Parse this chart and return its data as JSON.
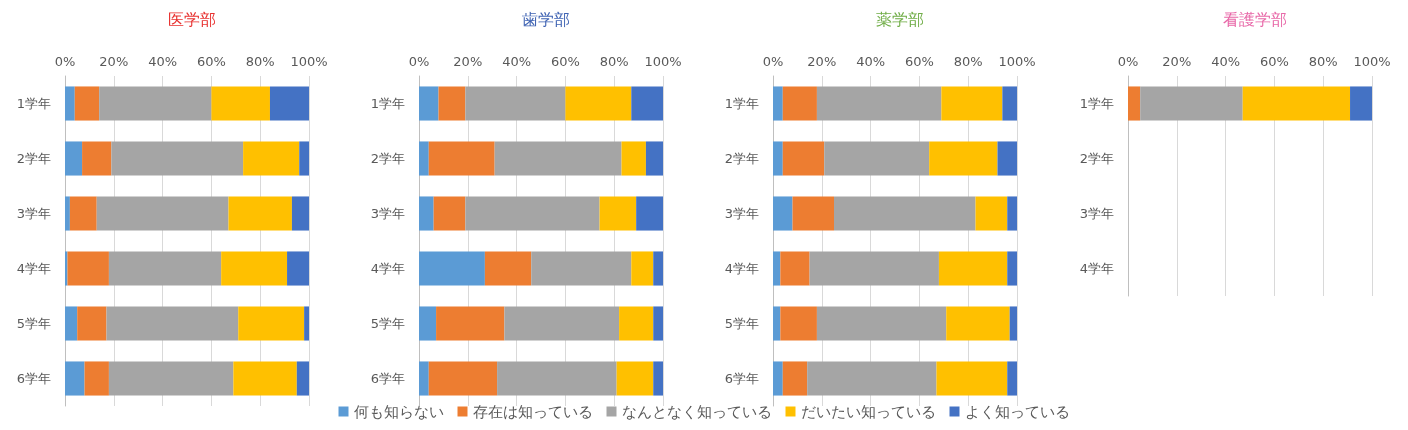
{
  "chart_data": [
    {
      "type": "bar",
      "orientation": "horizontal",
      "stacked": true,
      "title": "医学部",
      "categories": [
        "1学年",
        "2学年",
        "3学年",
        "4学年",
        "5学年",
        "6学年"
      ],
      "series": [
        {
          "name": "何も知らない",
          "color": "#5b9bd5",
          "values": [
            4,
            7,
            2,
            1,
            5,
            8
          ]
        },
        {
          "name": "存在は知っている",
          "color": "#ed7d31",
          "values": [
            10,
            12,
            11,
            17,
            12,
            10
          ]
        },
        {
          "name": "なんとなく知っている",
          "color": "#a5a5a5",
          "values": [
            46,
            54,
            54,
            46,
            54,
            51
          ]
        },
        {
          "name": "だいたい知っている",
          "color": "#ffc000",
          "values": [
            24,
            23,
            26,
            27,
            27,
            26
          ]
        },
        {
          "name": "よく知っている",
          "color": "#4472c4",
          "values": [
            16,
            4,
            7,
            9,
            2,
            5
          ]
        }
      ],
      "xlim": [
        0,
        100
      ],
      "xticks": [
        {
          "value": 0,
          "label": "0%"
        },
        {
          "value": 20,
          "label": "20%"
        },
        {
          "value": 40,
          "label": "40%"
        },
        {
          "value": 60,
          "label": "60%"
        },
        {
          "value": 80,
          "label": "80%"
        },
        {
          "value": 100,
          "label": "100%"
        }
      ],
      "grid": "x",
      "legend": "bottom"
    },
    {
      "type": "bar",
      "orientation": "horizontal",
      "stacked": true,
      "title": "歯学部",
      "categories": [
        "1学年",
        "2学年",
        "3学年",
        "4学年",
        "5学年",
        "6学年"
      ],
      "series": [
        {
          "color": "#5b9bd5",
          "values": [
            8,
            4,
            6,
            27,
            7,
            4
          ]
        },
        {
          "color": "#ed7d31",
          "values": [
            11,
            27,
            13,
            19,
            28,
            28
          ]
        },
        {
          "color": "#a5a5a5",
          "values": [
            41,
            52,
            55,
            41,
            47,
            49
          ]
        },
        {
          "color": "#ffc000",
          "values": [
            27,
            10,
            15,
            9,
            14,
            15
          ]
        },
        {
          "color": "#4472c4",
          "values": [
            13,
            7,
            11,
            4,
            4,
            4
          ]
        }
      ],
      "xlim": [
        0,
        100
      ],
      "xticks": [
        {
          "value": 0,
          "label": "0%"
        },
        {
          "value": 20,
          "label": "20%"
        },
        {
          "value": 40,
          "label": "40%"
        },
        {
          "value": 60,
          "label": "60%"
        },
        {
          "value": 80,
          "label": "80%"
        },
        {
          "value": 100,
          "label": "100%"
        }
      ],
      "grid": "x"
    },
    {
      "type": "bar",
      "orientation": "horizontal",
      "stacked": true,
      "title": "薬学部",
      "categories": [
        "1学年",
        "2学年",
        "3学年",
        "4学年",
        "5学年",
        "6学年"
      ],
      "series": [
        {
          "color": "#5b9bd5",
          "values": [
            4,
            4,
            8,
            3,
            3,
            4
          ]
        },
        {
          "color": "#ed7d31",
          "values": [
            14,
            17,
            17,
            12,
            15,
            10
          ]
        },
        {
          "color": "#a5a5a5",
          "values": [
            51,
            43,
            58,
            53,
            53,
            53
          ]
        },
        {
          "color": "#ffc000",
          "values": [
            25,
            28,
            13,
            28,
            26,
            29
          ]
        },
        {
          "color": "#4472c4",
          "values": [
            6,
            8,
            4,
            4,
            3,
            4
          ]
        }
      ],
      "xlim": [
        0,
        100
      ],
      "xticks": [
        {
          "value": 0,
          "label": "0%"
        },
        {
          "value": 20,
          "label": "20%"
        },
        {
          "value": 40,
          "label": "40%"
        },
        {
          "value": 60,
          "label": "60%"
        },
        {
          "value": 80,
          "label": "80%"
        },
        {
          "value": 100,
          "label": "100%"
        }
      ],
      "grid": "x"
    },
    {
      "type": "bar",
      "orientation": "horizontal",
      "stacked": true,
      "title": "看護学部",
      "categories": [
        "1学年",
        "2学年",
        "3学年",
        "4学年"
      ],
      "series": [
        {
          "color": "#5b9bd5",
          "values": [
            0,
            null,
            null,
            null
          ]
        },
        {
          "color": "#ed7d31",
          "values": [
            5,
            null,
            null,
            null
          ]
        },
        {
          "color": "#a5a5a5",
          "values": [
            42,
            null,
            null,
            null
          ]
        },
        {
          "color": "#ffc000",
          "values": [
            44,
            null,
            null,
            null
          ]
        },
        {
          "color": "#4472c4",
          "values": [
            9,
            null,
            null,
            null
          ]
        }
      ],
      "xlim": [
        0,
        100
      ],
      "xticks": [
        {
          "value": 0,
          "label": "0%"
        },
        {
          "value": 20,
          "label": "20%"
        },
        {
          "value": 40,
          "label": "40%"
        },
        {
          "value": 60,
          "label": "60%"
        },
        {
          "value": 80,
          "label": "80%"
        },
        {
          "value": 100,
          "label": "100%"
        }
      ],
      "grid": "x"
    }
  ]
}
